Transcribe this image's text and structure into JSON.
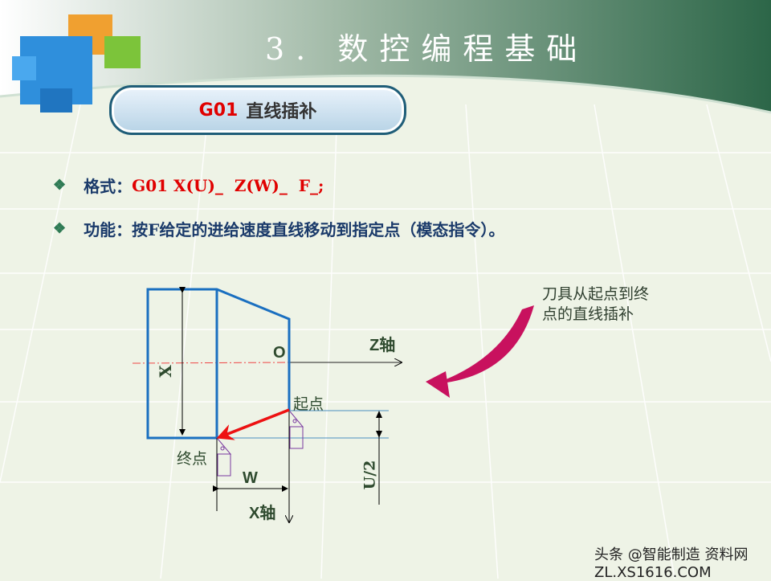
{
  "slide": {
    "title": "3. 数控编程基础",
    "banner": {
      "code": "G01",
      "text": "直线插补"
    },
    "bullets": [
      {
        "icon": "diamond-bullet-icon",
        "label": "格式：",
        "value": "G01 X(U)_  Z(W)_  F_;"
      },
      {
        "icon": "diamond-bullet-icon",
        "label": "功能：按F给定的进给速度直线移动到指定点（模态指令）。"
      }
    ]
  },
  "diagram": {
    "origin": "O",
    "z_axis": "Z轴",
    "x_axis": "X轴",
    "x_dim": "X",
    "w_dim": "W",
    "u_dim": "U/2",
    "start": "起点",
    "end": "终点",
    "note_line1": "刀具从起点到终",
    "note_line2": "点的直线插补"
  },
  "watermark": "头条 @智能制造  资料网 ZL.XS1616.COM",
  "colors": {
    "part": "#1a6fc0",
    "path": "#ee1111",
    "arrow": "#c8115e",
    "header": "#2e6a4e"
  }
}
